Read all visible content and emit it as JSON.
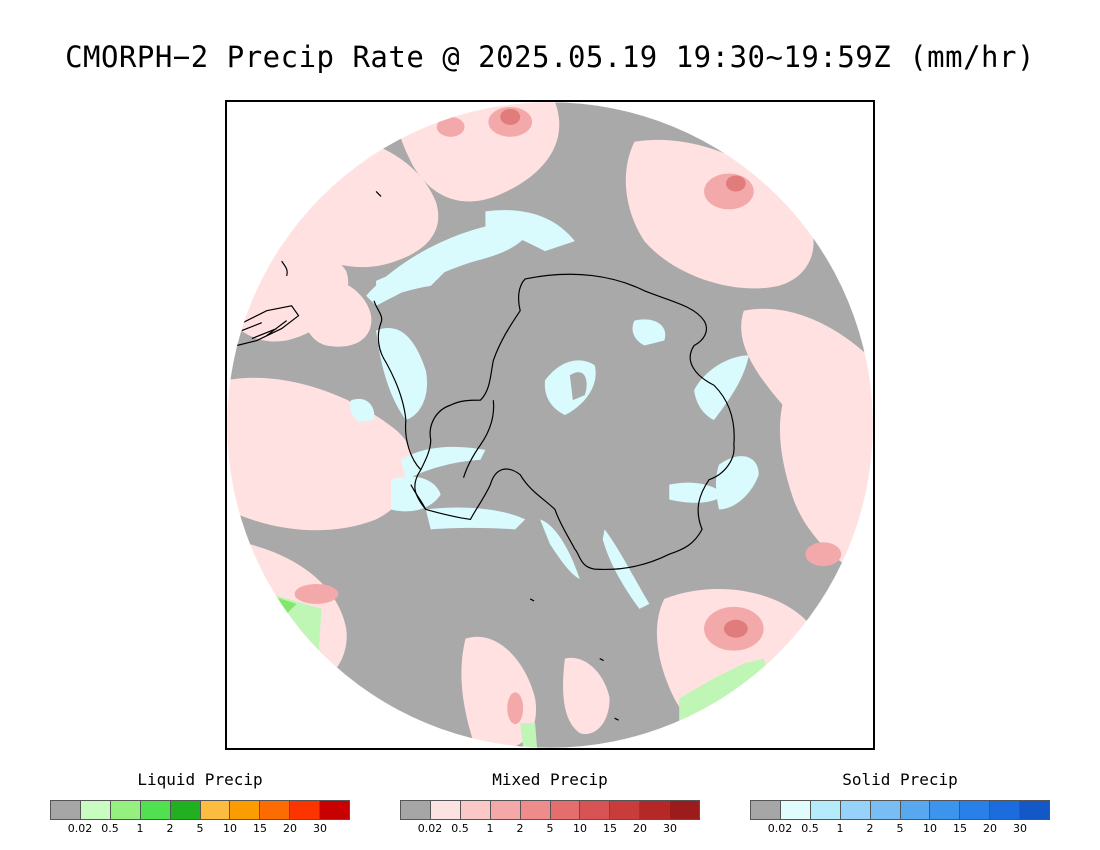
{
  "title": "CMORPH−2 Precip Rate @ 2025.05.19 19:30~19:59Z (mm/hr)",
  "map": {
    "projection": "south-polar-stereographic",
    "region": "Antarctica / Southern Ocean",
    "colors": {
      "no_precip": "#a9a9a9",
      "mixed_light": "#ffe1e1",
      "mixed_moderate": "#f3a9a9",
      "mixed_heavy": "#e07c7c",
      "solid_light": "#d9fbfd",
      "liquid_light": "#bff5b5",
      "liquid_moderate": "#82e86d",
      "coastline": "#000000"
    }
  },
  "legends": [
    {
      "title": "Liquid Precip",
      "ticks": [
        "0.02",
        "0.5",
        "1",
        "2",
        "5",
        "10",
        "15",
        "20",
        "30"
      ],
      "colors": [
        "#a6a6a6",
        "#c8fcc0",
        "#96f080",
        "#50e050",
        "#20b020",
        "#fcbc40",
        "#fc9c00",
        "#fc6c00",
        "#fc3400",
        "#c80000"
      ]
    },
    {
      "title": "Mixed Precip",
      "ticks": [
        "0.02",
        "0.5",
        "1",
        "2",
        "5",
        "10",
        "15",
        "20",
        "30"
      ],
      "colors": [
        "#a6a6a6",
        "#fde2e2",
        "#fbc8c8",
        "#f5a8a8",
        "#ee8c8c",
        "#e46e6e",
        "#d85454",
        "#c83c3c",
        "#b42828",
        "#9c1c1c"
      ]
    },
    {
      "title": "Solid Precip",
      "ticks": [
        "0.02",
        "0.5",
        "1",
        "2",
        "5",
        "10",
        "15",
        "20",
        "30"
      ],
      "colors": [
        "#a6a6a6",
        "#e0fcfc",
        "#b4ecfc",
        "#96d2fa",
        "#78bef4",
        "#58a8f0",
        "#3c94ec",
        "#2880e8",
        "#1c6cde",
        "#1458c8"
      ]
    }
  ]
}
